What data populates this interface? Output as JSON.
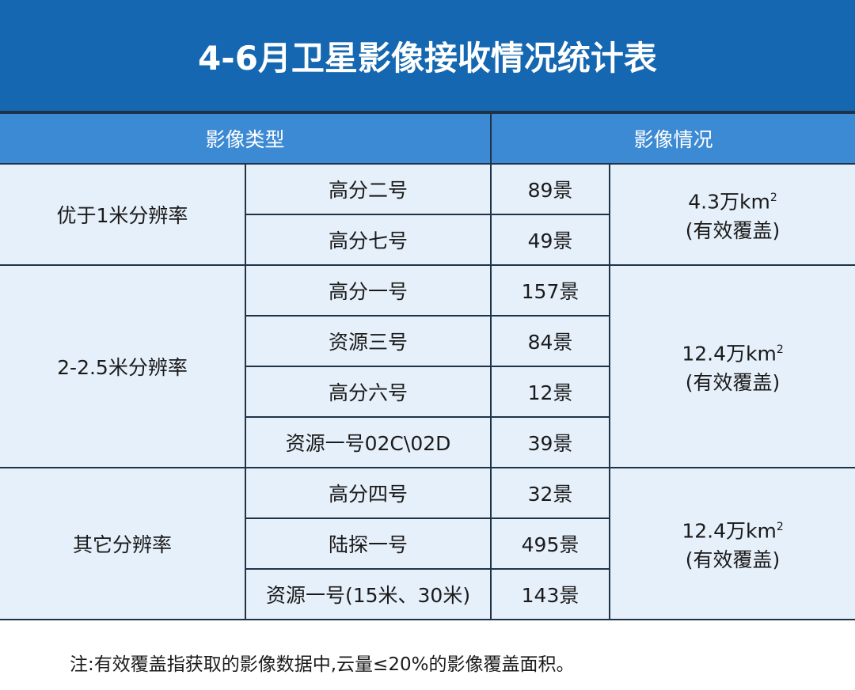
{
  "title": "4-6月卫星影像接收情况统计表",
  "header": [
    "影像类型",
    "影像情况"
  ],
  "groups": [
    {
      "category": "优于1米分辨率",
      "coverage": {
        "amount": "4.3万km",
        "sup": "2",
        "note": "(有效覆盖)"
      },
      "rows": [
        {
          "satellite": "高分二号",
          "count": "89景"
        },
        {
          "satellite": "高分七号",
          "count": "49景"
        }
      ]
    },
    {
      "category": "2-2.5米分辨率",
      "coverage": {
        "amount": "12.4万km",
        "sup": "2",
        "note": "(有效覆盖)"
      },
      "rows": [
        {
          "satellite": "高分一号",
          "count": "157景"
        },
        {
          "satellite": "资源三号",
          "count": "84景"
        },
        {
          "satellite": "高分六号",
          "count": "12景"
        },
        {
          "satellite": "资源一号02C\\02D",
          "count": "39景"
        }
      ]
    },
    {
      "category": "其它分辨率",
      "coverage": {
        "amount": "12.4万km",
        "sup": "2",
        "note": "(有效覆盖)"
      },
      "rows": [
        {
          "satellite": "高分四号",
          "count": "32景"
        },
        {
          "satellite": "陆探一号",
          "count": "495景"
        },
        {
          "satellite": "资源一号(15米、30米)",
          "count": "143景"
        }
      ]
    }
  ],
  "note": "注:有效覆盖指获取的影像数据中,云量≤20%的影像覆盖面积。"
}
